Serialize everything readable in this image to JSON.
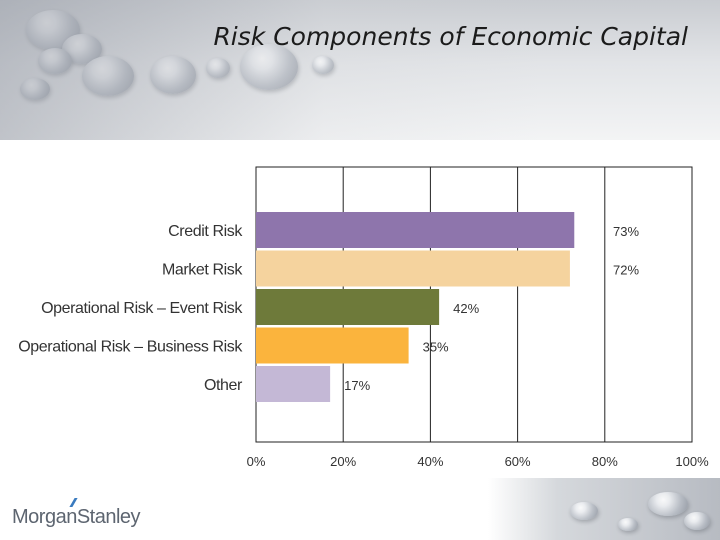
{
  "header": {
    "title": "Risk Components of Economic Capital"
  },
  "footer": {
    "logo_text": "MorganStanley"
  },
  "colors": {
    "credit": "#8e75ac",
    "market": "#f5d39e",
    "event": "#6e7a3a",
    "business": "#fbb43d",
    "other": "#c4b8d6",
    "grid": "#222222"
  },
  "chart_data": {
    "type": "bar",
    "orientation": "horizontal",
    "title": "",
    "xlabel": "",
    "ylabel": "",
    "categories": [
      "Credit Risk",
      "Market Risk",
      "Operational Risk – Event Risk",
      "Operational Risk – Business Risk",
      "Other"
    ],
    "values": [
      73,
      72,
      42,
      35,
      17
    ],
    "value_labels": [
      "73%",
      "72%",
      "42%",
      "35%",
      "17%"
    ],
    "bar_colors": [
      "#8e75ac",
      "#f5d39e",
      "#6e7a3a",
      "#fbb43d",
      "#c4b8d6"
    ],
    "xlim": [
      0,
      100
    ],
    "x_ticks": [
      0,
      20,
      40,
      60,
      80,
      100
    ],
    "x_tick_labels": [
      "0%",
      "20%",
      "40%",
      "60%",
      "80%",
      "100%"
    ],
    "grid": true,
    "legend": "none"
  }
}
